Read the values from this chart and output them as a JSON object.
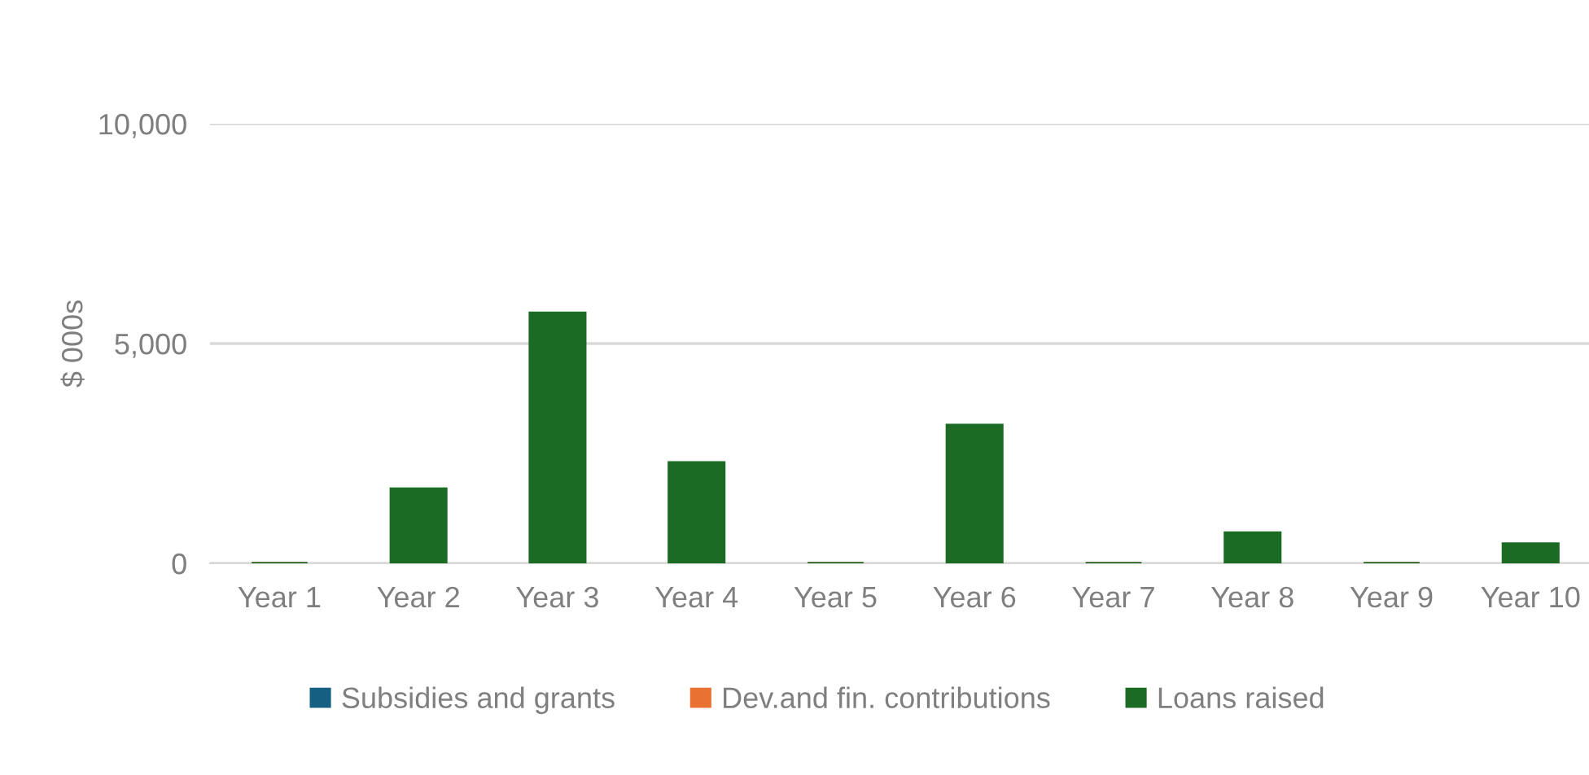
{
  "chart_data": {
    "type": "bar",
    "ylabel": "$ 000s",
    "categories": [
      "Year 1",
      "Year 2",
      "Year 3",
      "Year 4",
      "Year 5",
      "Year 6",
      "Year 7",
      "Year 8",
      "Year 9",
      "Year 10"
    ],
    "series": [
      {
        "name": "Subsidies and grants",
        "color": "#156082",
        "values": [
          0,
          0,
          0,
          0,
          0,
          0,
          0,
          0,
          0,
          0
        ]
      },
      {
        "name": "Dev.and fin. contributions",
        "color": "#e97132",
        "values": [
          0,
          0,
          0,
          0,
          0,
          0,
          0,
          0,
          0,
          0
        ]
      },
      {
        "name": "Loans raised",
        "color": "#1b6b24",
        "values": [
          0,
          1700,
          5700,
          2300,
          0,
          3150,
          0,
          700,
          0,
          450
        ]
      }
    ],
    "ylim": [
      0,
      10000
    ],
    "yticks": [
      0,
      {
        "value": 5000,
        "label": "5,000"
      },
      {
        "value": 10000,
        "label": "10,000"
      }
    ],
    "grid": "y",
    "legend": "bottom"
  }
}
